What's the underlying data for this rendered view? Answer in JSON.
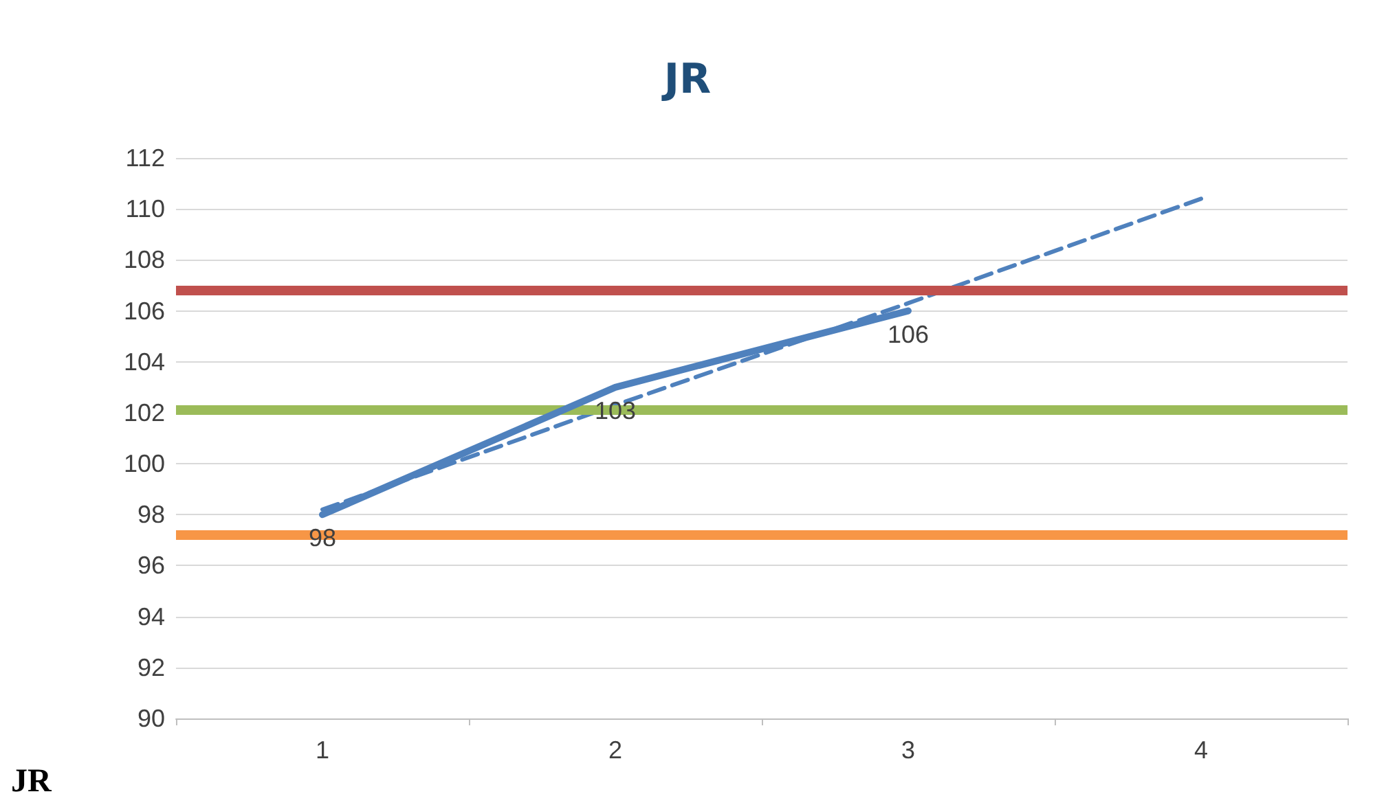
{
  "chart_data": {
    "type": "line",
    "title": "JR",
    "categories": [
      "1",
      "2",
      "3",
      "4"
    ],
    "series": [
      {
        "color": "#4f81bd",
        "values": [
          98,
          103,
          106,
          null
        ],
        "value_labels": [
          "98",
          "103",
          "106",
          null
        ],
        "line_style": "solid",
        "marker": "none"
      },
      {
        "color": "#4f81bd",
        "values": [
          98.2,
          102.3,
          106.3,
          110.4
        ],
        "line_style": "dashed",
        "marker": "none"
      }
    ],
    "ylim": [
      90,
      112
    ],
    "yticks": [
      90,
      92,
      94,
      96,
      98,
      100,
      102,
      104,
      106,
      108,
      110,
      112
    ],
    "grid": "y",
    "ref_lines": [
      {
        "axis": "y",
        "value": 106.8,
        "color": "#c0504d"
      },
      {
        "axis": "y",
        "value": 102.1,
        "color": "#9bbb59"
      },
      {
        "axis": "y",
        "value": 97.2,
        "color": "#f79646"
      }
    ],
    "annotations": [
      "JR"
    ]
  }
}
